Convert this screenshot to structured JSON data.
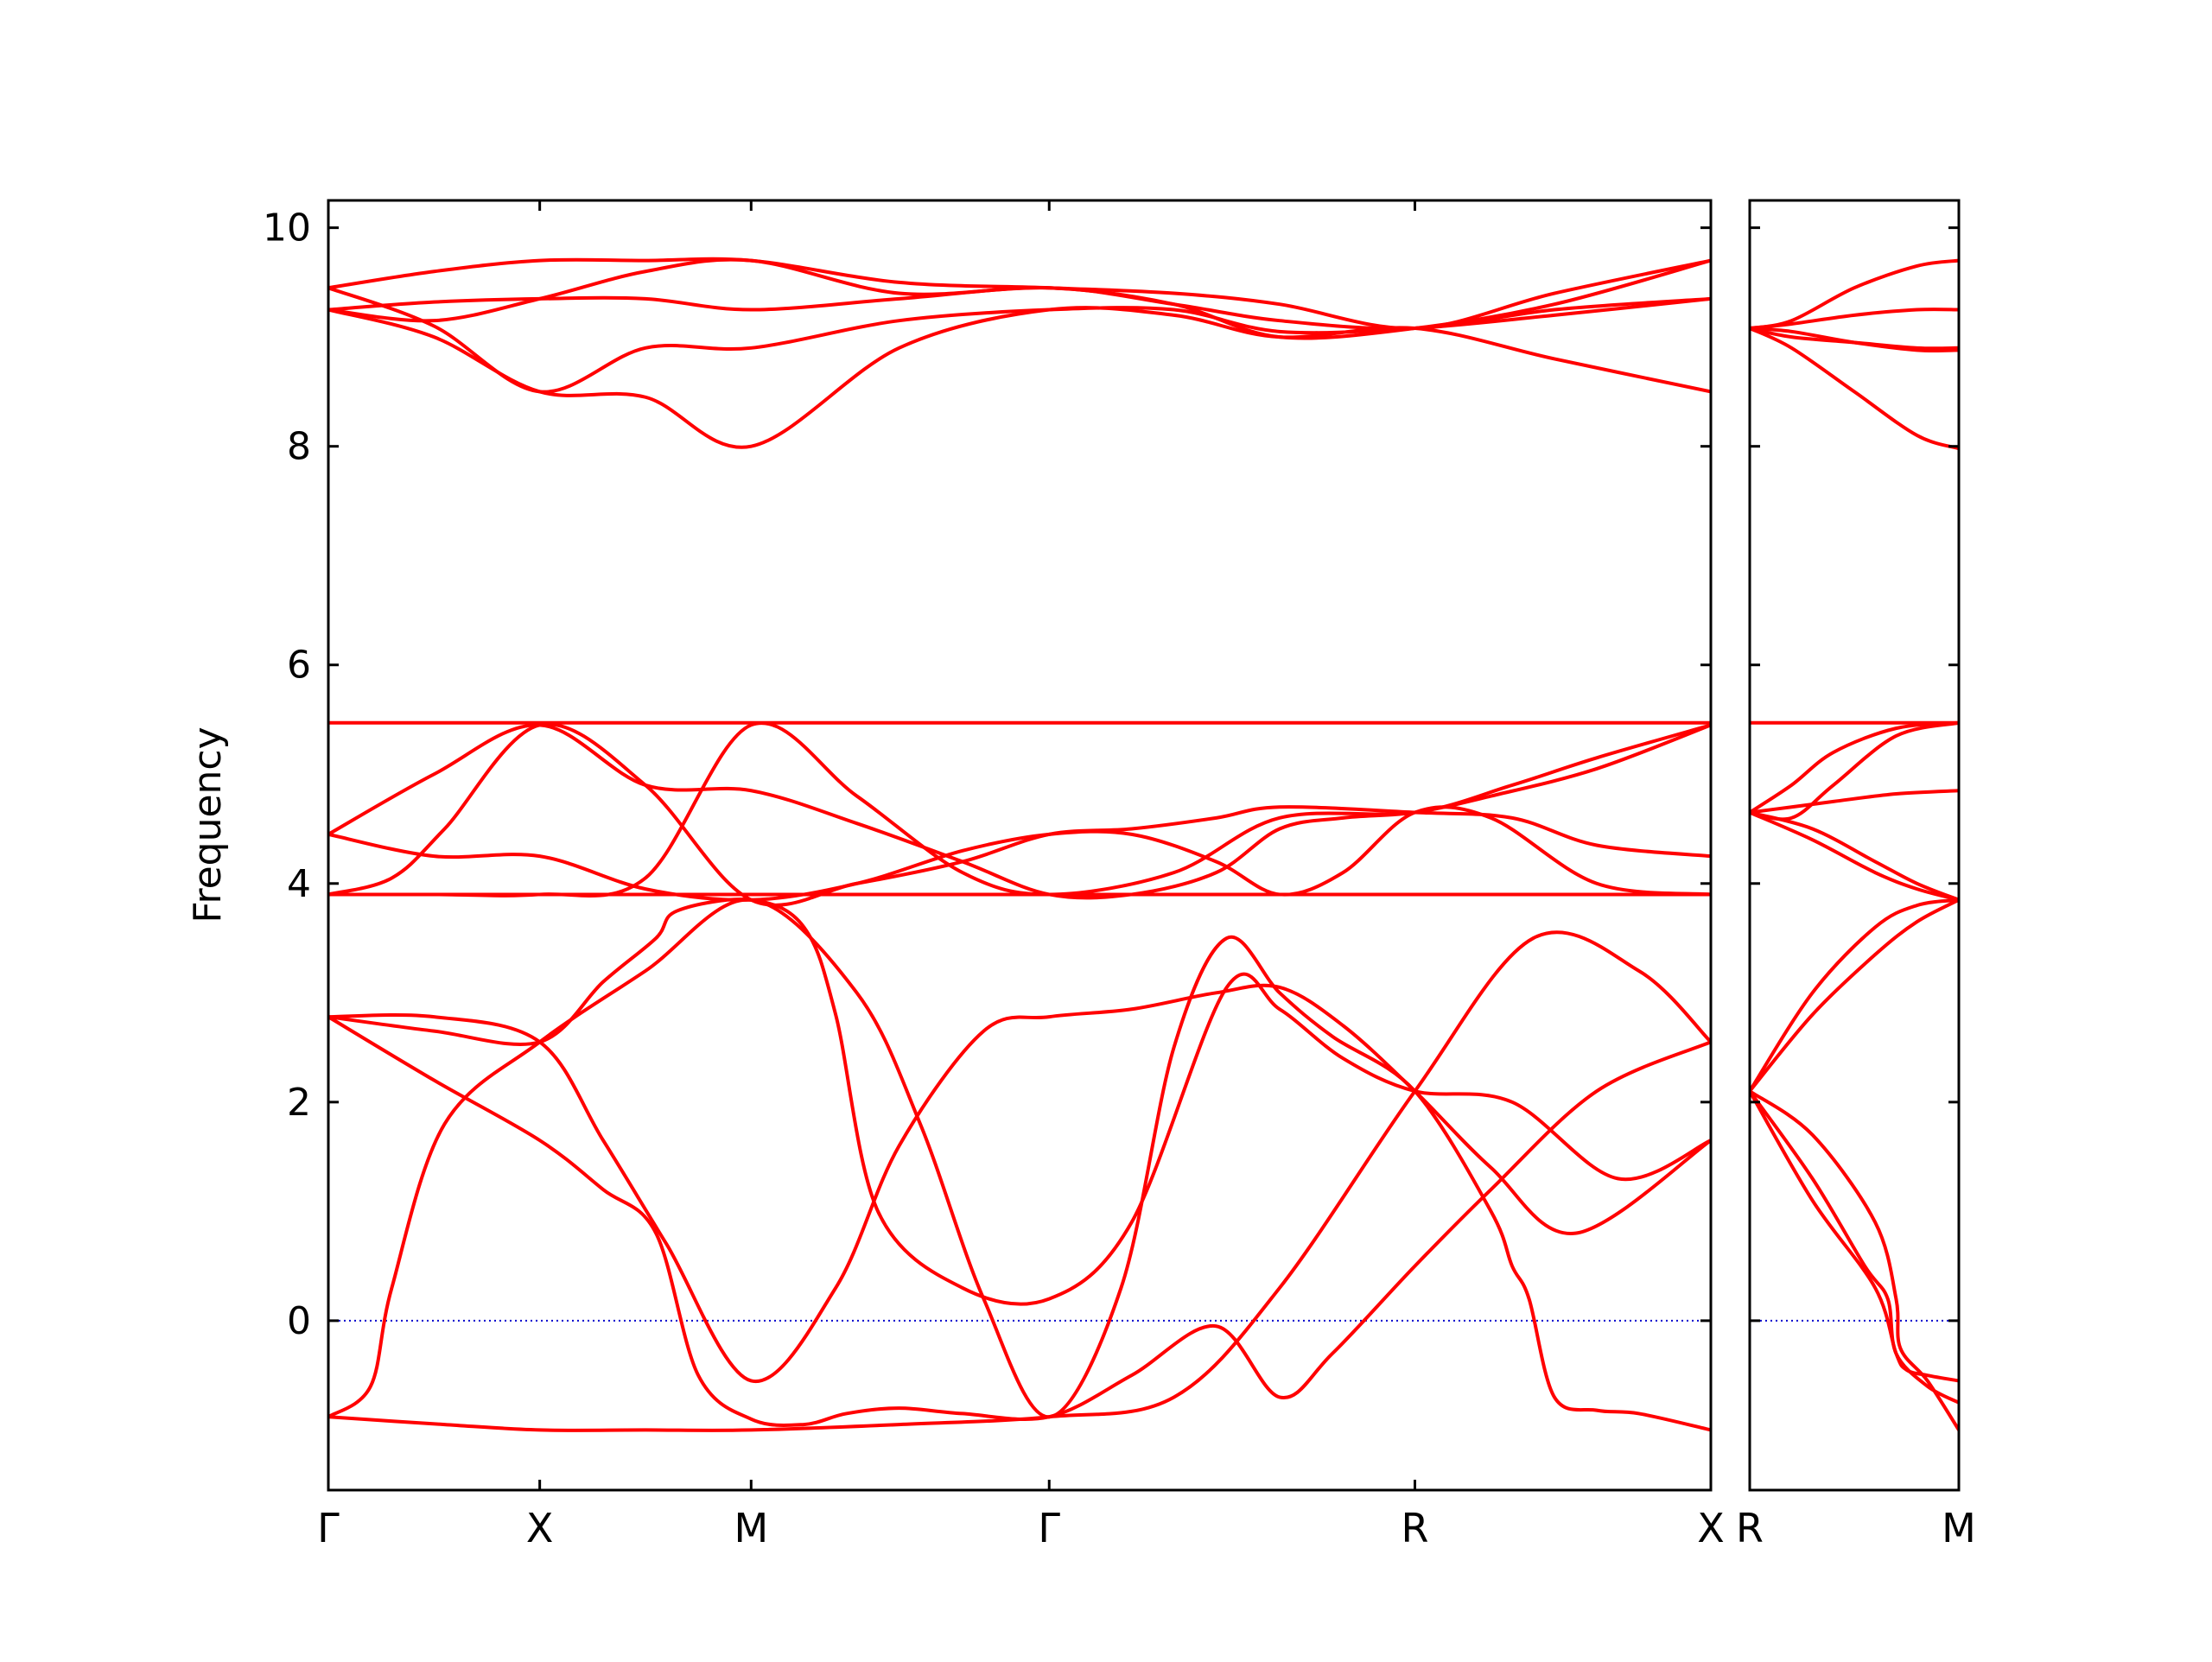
{
  "figure": {
    "ylabel": "Frequency",
    "zero_line_color": "#0000cc",
    "band_color": "#ff0000",
    "axis_color": "#000000"
  },
  "chart_data": {
    "type": "line",
    "title": "",
    "xlabel": "",
    "ylabel": "Frequency",
    "ylim": [
      -1.55,
      10.25
    ],
    "yticks": [
      0,
      2,
      4,
      6,
      8,
      10
    ],
    "grid": false,
    "legend": "none",
    "zero_line": 0,
    "panels": [
      {
        "name": "main",
        "xlim": [
          0,
          6.54
        ],
        "tick_positions": [
          0,
          1.0,
          2.0,
          3.41,
          5.14,
          6.54
        ],
        "tick_labels": [
          "Γ",
          "X",
          "M",
          "Γ",
          "R",
          "X"
        ],
        "series": [
          {
            "x": [
              0,
              0.55,
              1.0,
              1.5,
              2.0,
              2.7,
              3.41,
              4.0,
              4.5,
              5.14,
              5.7,
              6.2,
              6.54
            ],
            "y": [
              -0.88,
              -0.95,
              -1.0,
              -1.0,
              -1.0,
              -0.95,
              -0.88,
              -0.7,
              0.3,
              2.1,
              3.5,
              3.2,
              2.55
            ]
          },
          {
            "x": [
              0,
              0.2,
              0.3,
              0.55,
              1.0,
              1.5,
              2.0,
              2.5,
              2.8,
              3.1,
              3.41,
              3.75,
              4.0,
              4.25,
              4.5,
              4.75,
              5.14,
              5.5,
              5.6,
              5.68,
              5.8,
              6.0,
              6.2,
              6.54
            ],
            "y": [
              -0.88,
              -0.6,
              0.3,
              1.8,
              2.55,
              3.2,
              3.85,
              3.0,
              1.8,
              0.2,
              -0.88,
              0.3,
              2.5,
              3.5,
              3.0,
              2.6,
              2.1,
              1.0,
              0.5,
              0.2,
              -0.7,
              -0.82,
              -0.85,
              -1.0
            ]
          },
          {
            "x": [
              0,
              0.5,
              1.0,
              1.3,
              1.55,
              1.75,
              2.0,
              2.25,
              2.45,
              2.7,
              3.0,
              3.41,
              3.8,
              4.2,
              4.5,
              4.75,
              5.14,
              5.5,
              6.0,
              6.54
            ],
            "y": [
              2.78,
              2.2,
              1.65,
              1.2,
              0.8,
              -0.5,
              -0.9,
              -0.95,
              -0.85,
              -0.8,
              -0.85,
              -0.88,
              -0.5,
              -0.05,
              -0.7,
              -0.3,
              0.5,
              1.2,
              2.1,
              2.55
            ]
          },
          {
            "x": [
              0,
              0.5,
              1.0,
              1.3,
              1.55,
              1.65,
              2.0,
              2.25,
              2.4,
              2.6,
              3.0,
              3.41,
              3.8,
              4.25,
              4.5,
              4.8,
              5.14,
              5.6,
              6.1,
              6.54
            ],
            "y": [
              2.78,
              2.65,
              2.55,
              3.1,
              3.5,
              3.75,
              3.85,
              3.6,
              2.8,
              1.0,
              0.3,
              0.2,
              0.9,
              3.05,
              2.85,
              2.4,
              2.1,
              2.0,
              1.3,
              1.65
            ]
          },
          {
            "x": [
              0,
              0.5,
              1.0,
              1.3,
              1.6,
              2.0,
              2.4,
              2.7,
              3.1,
              3.41,
              3.8,
              4.2,
              4.5,
              4.8,
              5.14,
              5.5,
              5.9,
              6.54
            ],
            "y": [
              2.78,
              2.78,
              2.55,
              1.65,
              0.7,
              -0.55,
              0.3,
              1.6,
              2.65,
              2.78,
              2.85,
              3.0,
              3.05,
              2.7,
              2.1,
              1.4,
              0.8,
              1.65
            ]
          },
          {
            "x": [
              0,
              0.3,
              0.55,
              1.0,
              1.5,
              2.0,
              2.5,
              3.0,
              3.41,
              3.8,
              4.2,
              4.5,
              5.14,
              5.6,
              6.0,
              6.54
            ],
            "y": [
              3.9,
              4.05,
              4.5,
              5.45,
              4.9,
              3.85,
              4.0,
              4.2,
              4.45,
              4.5,
              4.6,
              4.7,
              4.65,
              4.6,
              4.35,
              4.25
            ]
          },
          {
            "x": [
              0,
              0.5,
              1.0,
              1.5,
              2.0,
              2.5,
              3.0,
              3.41,
              3.8,
              4.2,
              4.5,
              4.8,
              5.14,
              5.5,
              6.0,
              6.54
            ],
            "y": [
              4.45,
              4.25,
              4.25,
              3.95,
              3.85,
              4.0,
              4.3,
              4.45,
              4.45,
              4.2,
              3.9,
              4.1,
              4.65,
              4.6,
              4.0,
              3.9
            ]
          },
          {
            "x": [
              0,
              0.5,
              1.0,
              1.5,
              2.0,
              2.5,
              3.0,
              3.41,
              3.8,
              4.2,
              4.5,
              4.8,
              5.14,
              5.5,
              6.0,
              6.54
            ],
            "y": [
              4.45,
              5.0,
              5.45,
              4.9,
              4.85,
              4.55,
              4.2,
              3.9,
              3.9,
              4.1,
              4.5,
              4.6,
              4.65,
              4.8,
              5.05,
              5.45
            ]
          },
          {
            "x": [
              0,
              0.5,
              1.0,
              1.5,
              2.0,
              2.5,
              3.0,
              3.41,
              4.0,
              4.5,
              5.14,
              5.6,
              6.0,
              6.54
            ],
            "y": [
              3.9,
              3.9,
              3.9,
              4.05,
              5.45,
              4.8,
              4.1,
              3.9,
              4.1,
              4.6,
              4.65,
              4.9,
              5.15,
              5.45
            ]
          },
          {
            "x": [
              0,
              1.0,
              2.0,
              3.41,
              5.14,
              6.54
            ],
            "y": [
              3.9,
              3.9,
              3.9,
              3.9,
              3.9,
              3.9
            ]
          },
          {
            "x": [
              0,
              1.0,
              2.0,
              3.41,
              5.14,
              6.54
            ],
            "y": [
              5.47,
              5.47,
              5.47,
              5.47,
              5.47,
              5.47
            ]
          },
          {
            "x": [
              0,
              0.5,
              1.0,
              1.5,
              2.0,
              2.7,
              3.41,
              4.0,
              4.5,
              5.14,
              5.8,
              6.54
            ],
            "y": [
              9.45,
              9.6,
              9.7,
              9.7,
              9.7,
              9.5,
              9.45,
              9.4,
              9.3,
              9.08,
              9.4,
              9.7
            ]
          },
          {
            "x": [
              0,
              0.5,
              1.0,
              1.5,
              2.0,
              2.7,
              3.41,
              4.0,
              4.5,
              5.14,
              5.8,
              6.54
            ],
            "y": [
              9.25,
              9.32,
              9.35,
              9.35,
              9.25,
              9.35,
              9.45,
              9.3,
              9.15,
              9.08,
              9.25,
              9.35
            ]
          },
          {
            "x": [
              0,
              0.5,
              1.0,
              1.5,
              2.0,
              2.7,
              3.41,
              4.0,
              4.5,
              5.14,
              5.8,
              6.54
            ],
            "y": [
              9.45,
              9.1,
              8.5,
              8.9,
              8.9,
              9.15,
              9.25,
              9.25,
              9.05,
              9.08,
              9.2,
              9.35
            ]
          },
          {
            "x": [
              0,
              0.5,
              1.0,
              1.5,
              2.0,
              2.7,
              3.41,
              4.0,
              4.5,
              5.14,
              5.8,
              6.54
            ],
            "y": [
              9.25,
              9.0,
              8.5,
              8.45,
              8.0,
              8.9,
              9.25,
              9.2,
              9.0,
              9.08,
              8.8,
              8.5
            ]
          },
          {
            "x": [
              0,
              0.5,
              1.0,
              1.5,
              2.0,
              2.7,
              3.41,
              4.0,
              4.5,
              5.14,
              5.8,
              6.54
            ],
            "y": [
              9.25,
              9.15,
              9.35,
              9.6,
              9.7,
              9.4,
              9.45,
              9.3,
              9.0,
              9.08,
              9.3,
              9.7
            ]
          }
        ]
      },
      {
        "name": "side",
        "xlim": [
          0,
          1.0
        ],
        "tick_positions": [
          0,
          1.0
        ],
        "tick_labels": [
          "R",
          "M"
        ],
        "series": [
          {
            "x": [
              0,
              0.3,
              0.6,
              0.7,
              0.75,
              0.85,
              1.0
            ],
            "y": [
              2.1,
              1.1,
              0.3,
              -0.3,
              -0.45,
              -0.5,
              -0.55
            ]
          },
          {
            "x": [
              0,
              0.3,
              0.55,
              0.66,
              0.7,
              0.85,
              1.0
            ],
            "y": [
              2.1,
              1.3,
              0.5,
              0.2,
              -0.3,
              -0.6,
              -0.75
            ]
          },
          {
            "x": [
              0,
              0.3,
              0.6,
              0.7,
              0.72,
              0.85,
              1.0
            ],
            "y": [
              2.1,
              1.7,
              0.9,
              0.2,
              -0.25,
              -0.55,
              -1.0
            ]
          },
          {
            "x": [
              0,
              0.3,
              0.6,
              0.8,
              1.0
            ],
            "y": [
              2.1,
              3.0,
              3.6,
              3.8,
              3.85
            ]
          },
          {
            "x": [
              0,
              0.3,
              0.6,
              0.8,
              1.0
            ],
            "y": [
              2.1,
              2.8,
              3.35,
              3.65,
              3.85
            ]
          },
          {
            "x": [
              0,
              0.3,
              0.6,
              0.8,
              1.0
            ],
            "y": [
              4.65,
              4.5,
              4.2,
              4.0,
              3.85
            ]
          },
          {
            "x": [
              0,
              0.3,
              0.6,
              0.8,
              1.0
            ],
            "y": [
              4.65,
              4.4,
              4.1,
              3.95,
              3.85
            ]
          },
          {
            "x": [
              0,
              0.2,
              0.4,
              0.7,
              1.0
            ],
            "y": [
              4.65,
              4.7,
              4.75,
              4.82,
              4.85
            ]
          },
          {
            "x": [
              0,
              0.2,
              0.4,
              0.7,
              1.0
            ],
            "y": [
              4.65,
              4.6,
              4.9,
              5.35,
              5.47
            ]
          },
          {
            "x": [
              0,
              0.2,
              0.4,
              0.7,
              1.0
            ],
            "y": [
              4.65,
              4.9,
              5.2,
              5.42,
              5.47
            ]
          },
          {
            "x": [
              0,
              1.0
            ],
            "y": [
              5.47,
              5.47
            ]
          },
          {
            "x": [
              0,
              0.2,
              0.5,
              0.8,
              1.0
            ],
            "y": [
              9.08,
              9.15,
              9.45,
              9.65,
              9.7
            ]
          },
          {
            "x": [
              0,
              0.2,
              0.5,
              0.8,
              1.0
            ],
            "y": [
              9.08,
              9.12,
              9.2,
              9.25,
              9.25
            ]
          },
          {
            "x": [
              0,
              0.2,
              0.5,
              0.8,
              1.0
            ],
            "y": [
              9.08,
              9.0,
              8.95,
              8.9,
              8.9
            ]
          },
          {
            "x": [
              0,
              0.2,
              0.5,
              0.8,
              1.0
            ],
            "y": [
              9.08,
              9.05,
              8.95,
              8.88,
              8.88
            ]
          },
          {
            "x": [
              0,
              0.2,
              0.5,
              0.8,
              1.0
            ],
            "y": [
              9.08,
              8.9,
              8.5,
              8.1,
              7.98
            ]
          }
        ]
      }
    ]
  }
}
